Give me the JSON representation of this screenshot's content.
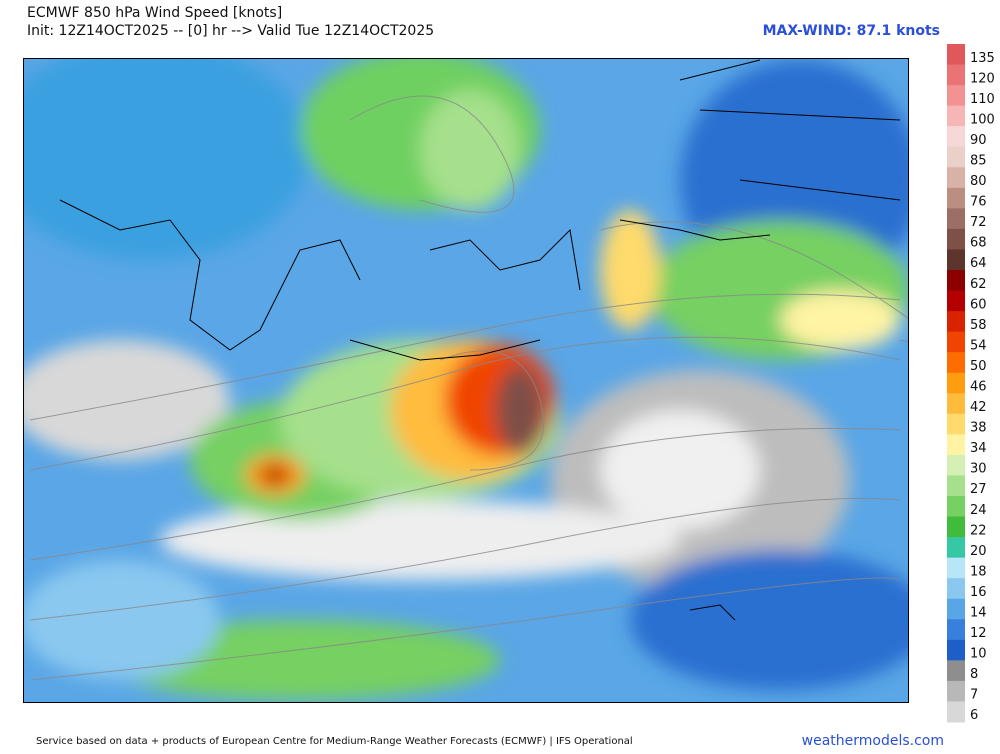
{
  "header": {
    "title": "ECMWF 850 hPa Wind Speed [knots]",
    "subtitle": "Init: 12Z14OCT2025 -- [0] hr --> Valid Tue 12Z14OCT2025",
    "max_wind": "MAX-WIND: 87.1 knots"
  },
  "colorbar": {
    "levels": [
      {
        "label": 135,
        "color": "#e0585a"
      },
      {
        "label": 120,
        "color": "#ea7475"
      },
      {
        "label": 110,
        "color": "#f29292"
      },
      {
        "label": 100,
        "color": "#f7b6b6"
      },
      {
        "label": 90,
        "color": "#f6d8d8"
      },
      {
        "label": 85,
        "color": "#ead0c8"
      },
      {
        "label": 80,
        "color": "#d8b2a6"
      },
      {
        "label": 76,
        "color": "#bb8e82"
      },
      {
        "label": 72,
        "color": "#9d6e64"
      },
      {
        "label": 68,
        "color": "#7e5046"
      },
      {
        "label": 64,
        "color": "#5e352c"
      },
      {
        "label": 62,
        "color": "#8c0000"
      },
      {
        "label": 60,
        "color": "#b40000"
      },
      {
        "label": 58,
        "color": "#d82200"
      },
      {
        "label": 54,
        "color": "#f04400"
      },
      {
        "label": 50,
        "color": "#ff6c00"
      },
      {
        "label": 46,
        "color": "#ff9c10"
      },
      {
        "label": 42,
        "color": "#ffbc3c"
      },
      {
        "label": 38,
        "color": "#ffda6c"
      },
      {
        "label": 34,
        "color": "#fff3a4"
      },
      {
        "label": 30,
        "color": "#d4f0b4"
      },
      {
        "label": 27,
        "color": "#a6e08c"
      },
      {
        "label": 24,
        "color": "#76d062"
      },
      {
        "label": 22,
        "color": "#40bb3c"
      },
      {
        "label": 20,
        "color": "#36c8a4"
      },
      {
        "label": 18,
        "color": "#b6e6f8"
      },
      {
        "label": 16,
        "color": "#8ac8f0"
      },
      {
        "label": 14,
        "color": "#58a6e8"
      },
      {
        "label": 12,
        "color": "#3880dc"
      },
      {
        "label": 10,
        "color": "#1e5ec8"
      },
      {
        "label": 8,
        "color": "#8e8e8e"
      },
      {
        "label": 7,
        "color": "#b8b8b8"
      },
      {
        "label": 6,
        "color": "#d8d8d8"
      }
    ]
  },
  "footer": {
    "credit": "Service based on data + products of European Centre for Medium-Range Weather Forecasts (ECMWF) | IFS Operational",
    "site": "weathermodels.com"
  }
}
